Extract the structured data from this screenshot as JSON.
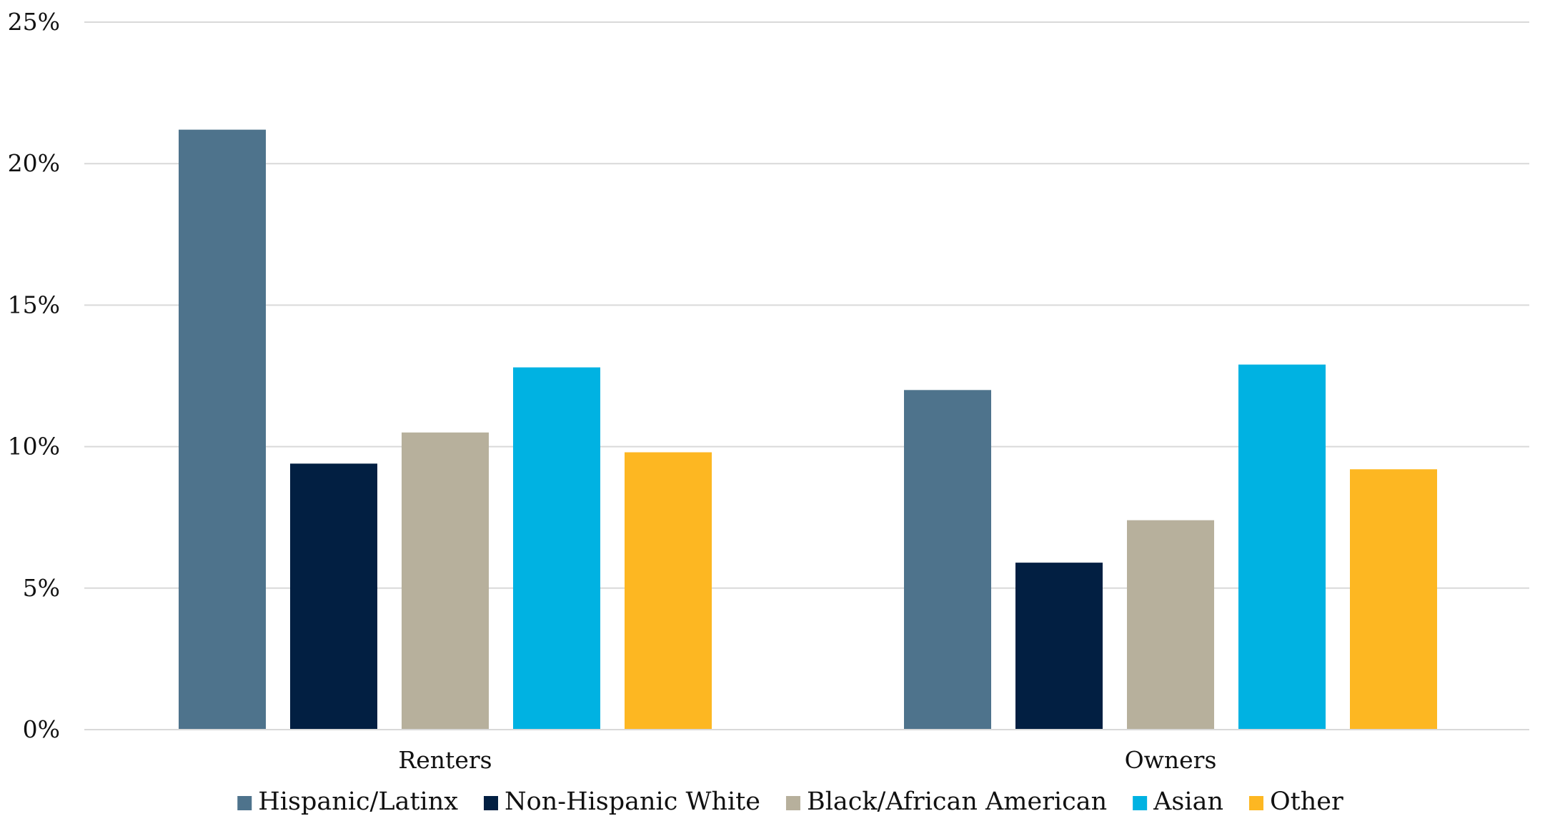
{
  "chart_data": {
    "type": "bar",
    "title": "",
    "xlabel": "",
    "ylabel": "",
    "categories": [
      "Renters",
      "Owners"
    ],
    "ylim": [
      0,
      25
    ],
    "yticks": [
      "0%",
      "5%",
      "10%",
      "15%",
      "20%",
      "25%"
    ],
    "ytick_values": [
      0,
      5,
      10,
      15,
      20,
      25
    ],
    "grid": true,
    "legend_position": "bottom",
    "series": [
      {
        "name": "Hispanic/Latinx",
        "color": "#4E738C",
        "values": [
          21.2,
          12.0
        ]
      },
      {
        "name": "Non-Hispanic White",
        "color": "#021F42",
        "values": [
          9.4,
          5.9
        ]
      },
      {
        "name": "Black/African American",
        "color": "#B7B09C",
        "values": [
          10.5,
          7.4
        ]
      },
      {
        "name": "Asian",
        "color": "#00B2E2",
        "values": [
          12.8,
          12.9
        ]
      },
      {
        "name": "Other",
        "color": "#FDB722",
        "values": [
          9.8,
          9.2
        ]
      }
    ]
  }
}
